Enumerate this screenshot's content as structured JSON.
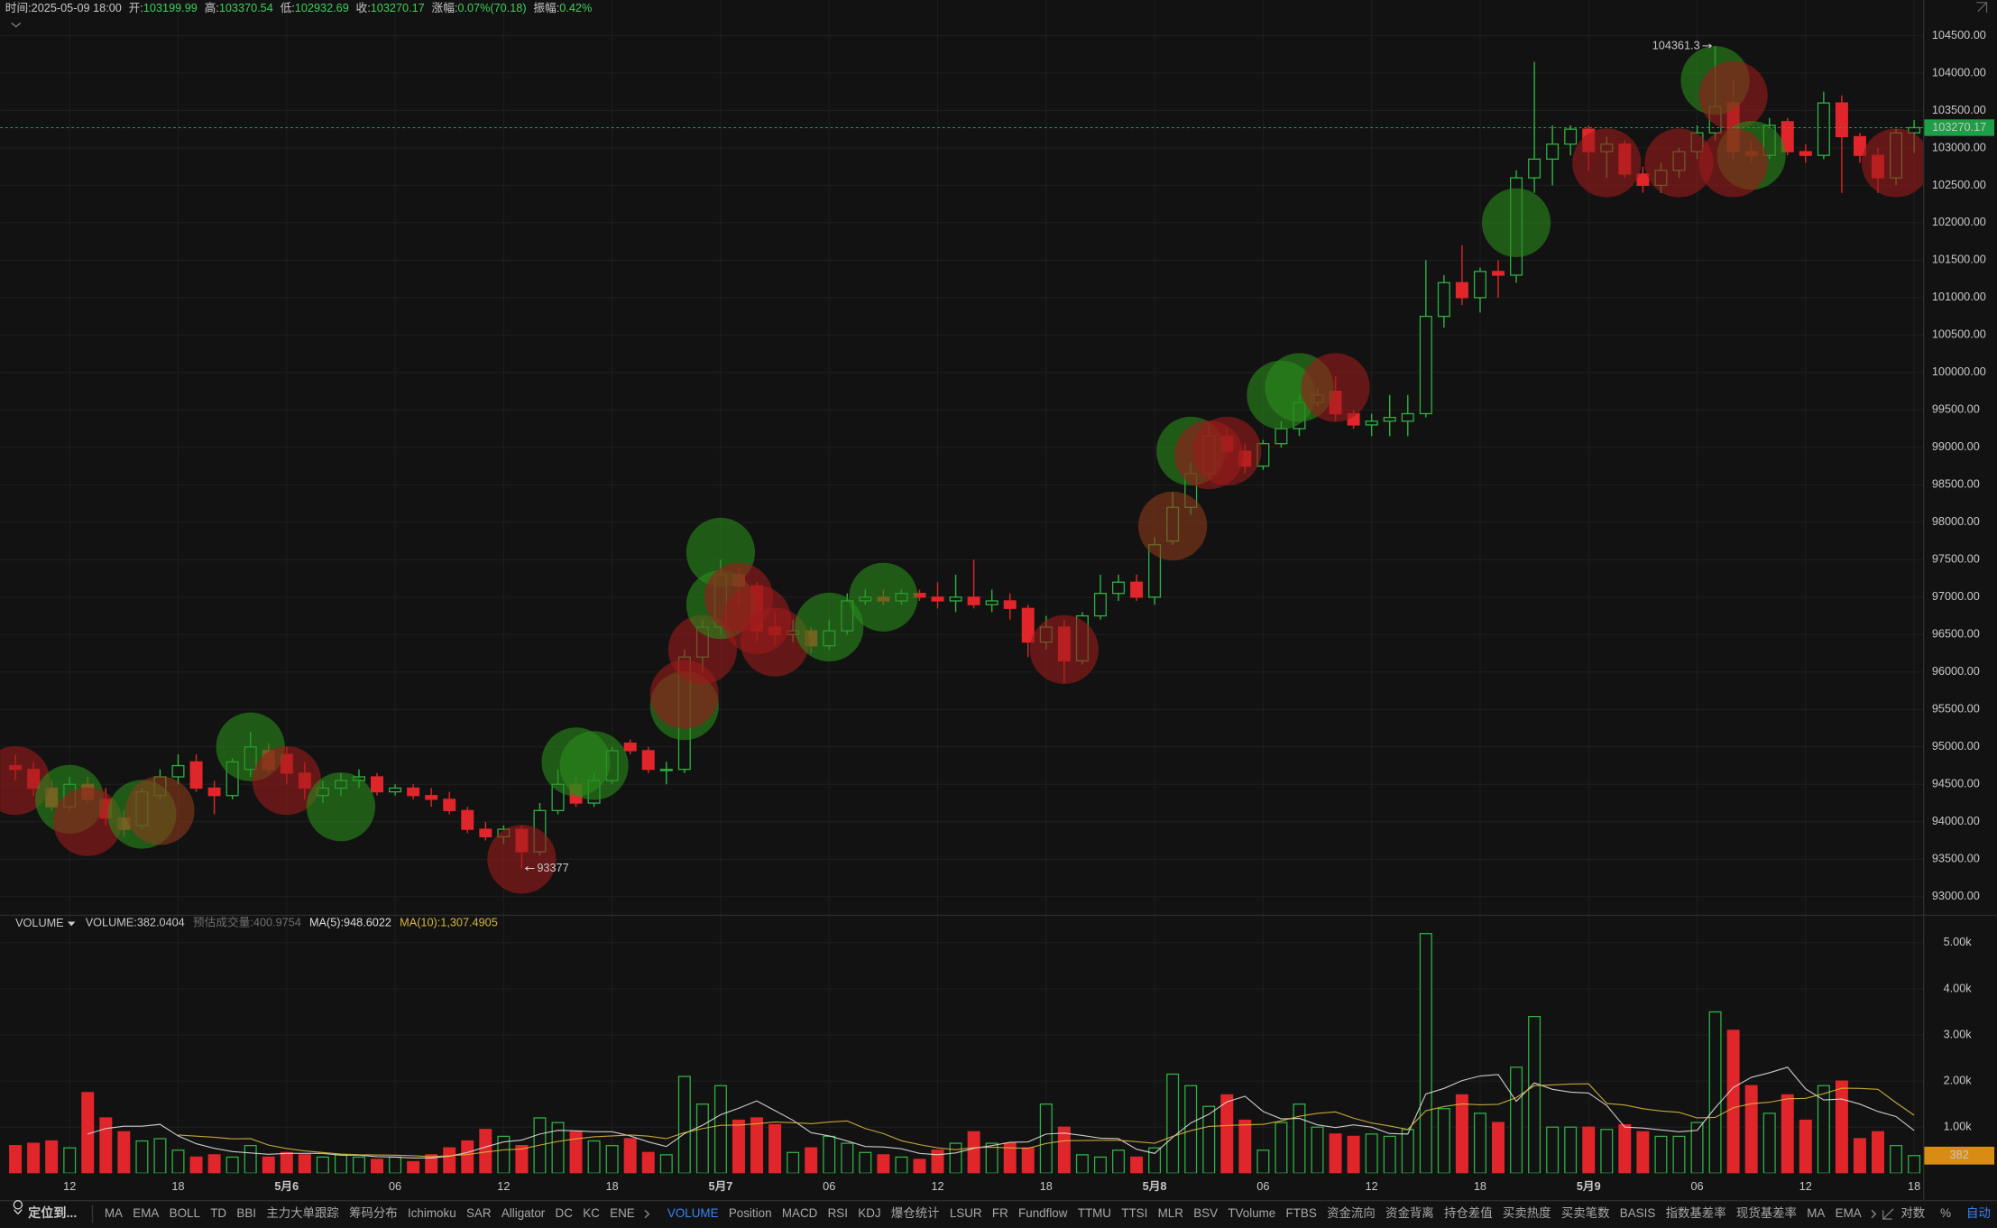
{
  "header": {
    "time_label": "时间:",
    "time": "2025-05-09 18:00",
    "open_label": "开:",
    "high_label": "高:",
    "low_label": "低:",
    "close_label": "收:",
    "change_label": "涨幅:",
    "change": "0.07%(70.18)",
    "amplitude_label": "振幅:",
    "amplitude": "0.42%"
  },
  "volume_legend": {
    "name": "VOLUME",
    "value_label": "VOLUME:",
    "estimate": "预估成交量:400.9754",
    "ma5": "MA(5):948.6022",
    "ma10": "MA(10):1,307.4905"
  },
  "toolbar": {
    "locate": "定位到...",
    "main_indicators": [
      "MA",
      "EMA",
      "BOLL",
      "TD",
      "BBI",
      "主力大单跟踪",
      "筹码分布",
      "Ichimoku",
      "SAR",
      "Alligator",
      "DC",
      "KC",
      "ENE"
    ],
    "sub_indicators": [
      "VOLUME",
      "Position",
      "MACD",
      "RSI",
      "KDJ",
      "爆仓统计",
      "LSUR",
      "FR",
      "Fundflow",
      "TTMU",
      "TTSI",
      "MLR",
      "BSV",
      "TVolume",
      "FTBS",
      "资金流向",
      "资金背离",
      "持仓差值",
      "买卖热度",
      "买卖笔数",
      "BASIS",
      "指数基差率",
      "现货基差率",
      "MA",
      "EMA"
    ],
    "options": [
      "对数",
      "%",
      "自动"
    ]
  },
  "chart_data": {
    "type": "candlestick",
    "categories": [
      null,
      null,
      null,
      "12",
      null,
      null,
      null,
      null,
      null,
      "18",
      null,
      null,
      null,
      null,
      null,
      "5月6",
      null,
      null,
      null,
      null,
      null,
      "06",
      null,
      null,
      null,
      null,
      null,
      "12",
      null,
      null,
      null,
      null,
      null,
      "18",
      null,
      null,
      null,
      null,
      null,
      "5月7",
      null,
      null,
      null,
      null,
      null,
      "06",
      null,
      null,
      null,
      null,
      null,
      "12",
      null,
      null,
      null,
      null,
      null,
      "18",
      null,
      null,
      null,
      null,
      null,
      "5月8",
      null,
      null,
      null,
      null,
      null,
      "06",
      null,
      null,
      null,
      null,
      null,
      "12",
      null,
      null,
      null,
      null,
      null,
      "18",
      null,
      null,
      null,
      null,
      null,
      "5月9",
      null,
      null,
      null,
      null,
      null,
      "06",
      null,
      null,
      null,
      null,
      null,
      "12",
      null,
      null,
      null,
      null,
      null,
      "18"
    ],
    "open": [
      94750,
      94700,
      94450,
      94200,
      94500,
      94300,
      94050,
      93950,
      94350,
      94600,
      94800,
      94450,
      94350,
      94700,
      94950,
      94900,
      94650,
      94350,
      94450,
      94550,
      94600,
      94400,
      94450,
      94350,
      94300,
      94150,
      93900,
      93800,
      93900,
      93600,
      94150,
      94500,
      94250,
      94550,
      95050,
      94950,
      94700,
      94700,
      96200,
      96600,
      97300,
      97150,
      96600,
      96500,
      96550,
      96350,
      96550,
      96950,
      97000,
      96950,
      97050,
      97000,
      96950,
      97000,
      96900,
      96950,
      96850,
      96400,
      96600,
      96150,
      96750,
      97050,
      97200,
      97000,
      97750,
      98200,
      98650,
      99150,
      98950,
      98750,
      99050,
      99250,
      99600,
      99750,
      99450,
      99300,
      99350,
      99350,
      99450,
      100750,
      101200,
      101000,
      101350,
      101300,
      102600,
      102850,
      103050,
      103250,
      102950,
      103050,
      102650,
      102500,
      102700,
      102950,
      103200,
      103600,
      102950,
      102900,
      103350,
      102950,
      102900,
      103600,
      103150,
      102900,
      102600,
      103199.99
    ],
    "high": [
      94900,
      94800,
      94550,
      94600,
      94600,
      94450,
      94150,
      94450,
      94700,
      94900,
      94900,
      94550,
      94850,
      95200,
      95050,
      95000,
      94800,
      94550,
      94650,
      94700,
      94650,
      94500,
      94500,
      94450,
      94400,
      94200,
      94000,
      93950,
      93950,
      94250,
      94700,
      94600,
      94650,
      95000,
      95100,
      95000,
      94800,
      96300,
      96700,
      97500,
      97400,
      97200,
      96800,
      96700,
      96600,
      96700,
      97050,
      97100,
      97100,
      97100,
      97100,
      97200,
      97300,
      97500,
      97100,
      97050,
      96900,
      96750,
      96700,
      96800,
      97300,
      97300,
      97300,
      97800,
      98400,
      98800,
      99300,
      99250,
      99050,
      99100,
      99350,
      99700,
      99800,
      99950,
      99500,
      99450,
      99700,
      99700,
      101500,
      101300,
      101700,
      101400,
      101500,
      102700,
      104150,
      103300,
      103300,
      103300,
      103150,
      103100,
      102750,
      102800,
      103000,
      103300,
      104361.3,
      103900,
      103100,
      103400,
      103400,
      103050,
      103750,
      103700,
      103200,
      103000,
      103250,
      103370.54
    ],
    "low": [
      94550,
      94350,
      94150,
      94150,
      94250,
      93950,
      93800,
      93900,
      94300,
      94500,
      94400,
      94100,
      94300,
      94600,
      94650,
      94500,
      94300,
      94250,
      94350,
      94450,
      94350,
      94350,
      94300,
      94200,
      94100,
      93850,
      93750,
      93700,
      93377,
      93550,
      94100,
      94200,
      94200,
      94500,
      94900,
      94650,
      94500,
      94650,
      96000,
      96500,
      96900,
      96400,
      96350,
      96400,
      96250,
      96300,
      96500,
      96900,
      96900,
      96900,
      96950,
      96850,
      96800,
      96850,
      96800,
      96700,
      96200,
      96300,
      95850,
      96100,
      96700,
      96950,
      96950,
      96900,
      97700,
      98100,
      98600,
      98850,
      98650,
      98700,
      99000,
      99150,
      99550,
      99350,
      99250,
      99150,
      99150,
      99150,
      99400,
      100600,
      100900,
      100800,
      101000,
      101200,
      102400,
      102500,
      102900,
      102700,
      102600,
      102600,
      102400,
      102400,
      102600,
      102850,
      103100,
      102850,
      102800,
      102850,
      102900,
      102800,
      102850,
      102400,
      102800,
      102400,
      102500,
      102932.69
    ],
    "close": [
      94700,
      94450,
      94200,
      94500,
      94300,
      94050,
      93900,
      94400,
      94600,
      94750,
      94450,
      94350,
      94800,
      95000,
      94700,
      94650,
      94450,
      94450,
      94550,
      94600,
      94400,
      94450,
      94350,
      94300,
      94150,
      93900,
      93800,
      93900,
      93600,
      94150,
      94500,
      94250,
      94550,
      94950,
      94950,
      94700,
      94700,
      96200,
      96600,
      97300,
      97150,
      96550,
      96500,
      96550,
      96350,
      96550,
      96950,
      97000,
      96950,
      97050,
      97000,
      96950,
      97000,
      96900,
      96950,
      96850,
      96400,
      96600,
      96150,
      96750,
      97050,
      97200,
      97000,
      97700,
      98200,
      98650,
      99150,
      98950,
      98750,
      99050,
      99250,
      99600,
      99700,
      99450,
      99300,
      99350,
      99400,
      99450,
      100750,
      101200,
      101000,
      101350,
      101300,
      102600,
      102850,
      103050,
      103250,
      102950,
      103050,
      102650,
      102500,
      102700,
      102950,
      103200,
      103550,
      102950,
      102900,
      103300,
      102950,
      102900,
      103600,
      103150,
      102900,
      102600,
      103200,
      103270.17
    ],
    "volume": [
      600,
      650,
      700,
      550,
      1750,
      1200,
      900,
      700,
      750,
      500,
      350,
      400,
      350,
      600,
      350,
      450,
      400,
      350,
      400,
      350,
      300,
      350,
      250,
      400,
      550,
      700,
      950,
      800,
      600,
      1200,
      1100,
      900,
      700,
      600,
      750,
      450,
      400,
      2100,
      1500,
      1900,
      1150,
      1200,
      1050,
      450,
      550,
      800,
      650,
      450,
      400,
      350,
      300,
      500,
      650,
      900,
      650,
      650,
      550,
      1500,
      1000,
      400,
      350,
      500,
      350,
      550,
      2150,
      1900,
      1450,
      1700,
      1150,
      500,
      1100,
      1500,
      1000,
      850,
      800,
      850,
      800,
      950,
      5200,
      1400,
      1700,
      1300,
      1100,
      2300,
      3400,
      1000,
      1000,
      1000,
      950,
      1050,
      900,
      800,
      800,
      1100,
      3500,
      3100,
      1900,
      1300,
      1700,
      1150,
      1900,
      2000,
      750,
      900,
      600,
      382.0404
    ],
    "last_volume_label": "382",
    "up_color": "#2fb344",
    "down_color": "#e0262a",
    "ma5_color": "#dedede",
    "ma10_color": "#d6b63c",
    "price_tag_color": "#1f9e48",
    "volume_tag_color": "#d98c14",
    "ylim": [
      92760,
      104975
    ],
    "yticks": [
      {
        "value": 93000,
        "label": "93000.00"
      },
      {
        "value": 93500,
        "label": "93500.00"
      },
      {
        "value": 94000,
        "label": "94000.00"
      },
      {
        "value": 94500,
        "label": "94500.00"
      },
      {
        "value": 95000,
        "label": "95000.00"
      },
      {
        "value": 95500,
        "label": "95500.00"
      },
      {
        "value": 96000,
        "label": "96000.00"
      },
      {
        "value": 96500,
        "label": "96500.00"
      },
      {
        "value": 97000,
        "label": "97000.00"
      },
      {
        "value": 97500,
        "label": "97500.00"
      },
      {
        "value": 98000,
        "label": "98000.00"
      },
      {
        "value": 98500,
        "label": "98500.00"
      },
      {
        "value": 99000,
        "label": "99000.00"
      },
      {
        "value": 99500,
        "label": "99500.00"
      },
      {
        "value": 100000,
        "label": "100000.00"
      },
      {
        "value": 100500,
        "label": "100500.00"
      },
      {
        "value": 101000,
        "label": "101000.00"
      },
      {
        "value": 101500,
        "label": "101500.00"
      },
      {
        "value": 102000,
        "label": "102000.00"
      },
      {
        "value": 102500,
        "label": "102500.00"
      },
      {
        "value": 103000,
        "label": "103000.00"
      },
      {
        "value": 103500,
        "label": "103500.00"
      },
      {
        "value": 104000,
        "label": "104000.00"
      },
      {
        "value": 104500,
        "label": "104500.00"
      }
    ],
    "volume_ylim": [
      0,
      5500
    ],
    "volume_yticks": [
      {
        "value": 1000,
        "label": "1.00k"
      },
      {
        "value": 2000,
        "label": "2.00k"
      },
      {
        "value": 3000,
        "label": "3.00k"
      },
      {
        "value": 4000,
        "label": "4.00k"
      },
      {
        "value": 5000,
        "label": "5.00k"
      }
    ],
    "grid": true,
    "bubbles": [
      {
        "index": 0,
        "price": 94550,
        "color": "#9b1a1a"
      },
      {
        "index": 3,
        "price": 94300,
        "color": "#2a8a1a"
      },
      {
        "index": 4,
        "price": 94000,
        "color": "#9b1a1a"
      },
      {
        "index": 7,
        "price": 94100,
        "color": "#2a8a1a"
      },
      {
        "index": 8,
        "price": 94150,
        "color": "#8a3a1a"
      },
      {
        "index": 13,
        "price": 95000,
        "color": "#2a8a1a"
      },
      {
        "index": 15,
        "price": 94550,
        "color": "#9b1a1a"
      },
      {
        "index": 18,
        "price": 94200,
        "color": "#2a8a1a"
      },
      {
        "index": 28,
        "price": 93500,
        "color": "#9b1a1a"
      },
      {
        "index": 31,
        "price": 94800,
        "color": "#2a8a1a"
      },
      {
        "index": 32,
        "price": 94750,
        "color": "#2a8a1a"
      },
      {
        "index": 37,
        "price": 95550,
        "color": "#2a8a1a"
      },
      {
        "index": 37,
        "price": 95700,
        "color": "#9b1a1a"
      },
      {
        "index": 38,
        "price": 96300,
        "color": "#9b1a1a"
      },
      {
        "index": 39,
        "price": 97600,
        "color": "#2a8a1a"
      },
      {
        "index": 39,
        "price": 96900,
        "color": "#2a8a1a"
      },
      {
        "index": 40,
        "price": 97000,
        "color": "#9b1a1a"
      },
      {
        "index": 41,
        "price": 96700,
        "color": "#9b1a1a"
      },
      {
        "index": 42,
        "price": 96400,
        "color": "#9b1a1a"
      },
      {
        "index": 45,
        "price": 96600,
        "color": "#2a8a1a"
      },
      {
        "index": 48,
        "price": 97000,
        "color": "#2a8a1a"
      },
      {
        "index": 58,
        "price": 96300,
        "color": "#9b1a1a"
      },
      {
        "index": 64,
        "price": 97950,
        "color": "#8a3a1a"
      },
      {
        "index": 65,
        "price": 98950,
        "color": "#2a8a1a"
      },
      {
        "index": 66,
        "price": 98900,
        "color": "#9b1a1a"
      },
      {
        "index": 67,
        "price": 98950,
        "color": "#9b1a1a"
      },
      {
        "index": 70,
        "price": 99700,
        "color": "#2a8a1a"
      },
      {
        "index": 71,
        "price": 99800,
        "color": "#2a8a1a"
      },
      {
        "index": 73,
        "price": 99800,
        "color": "#9b1a1a"
      },
      {
        "index": 83,
        "price": 102000,
        "color": "#2a8a1a"
      },
      {
        "index": 88,
        "price": 102800,
        "color": "#9b1a1a"
      },
      {
        "index": 92,
        "price": 102800,
        "color": "#9b1a1a"
      },
      {
        "index": 94,
        "price": 103900,
        "color": "#2a8a1a"
      },
      {
        "index": 95,
        "price": 103700,
        "color": "#9b1a1a"
      },
      {
        "index": 96,
        "price": 102900,
        "color": "#2a8a1a"
      },
      {
        "index": 95,
        "price": 102800,
        "color": "#9b1a1a"
      },
      {
        "index": 104,
        "price": 102800,
        "color": "#9b1a1a"
      }
    ]
  }
}
